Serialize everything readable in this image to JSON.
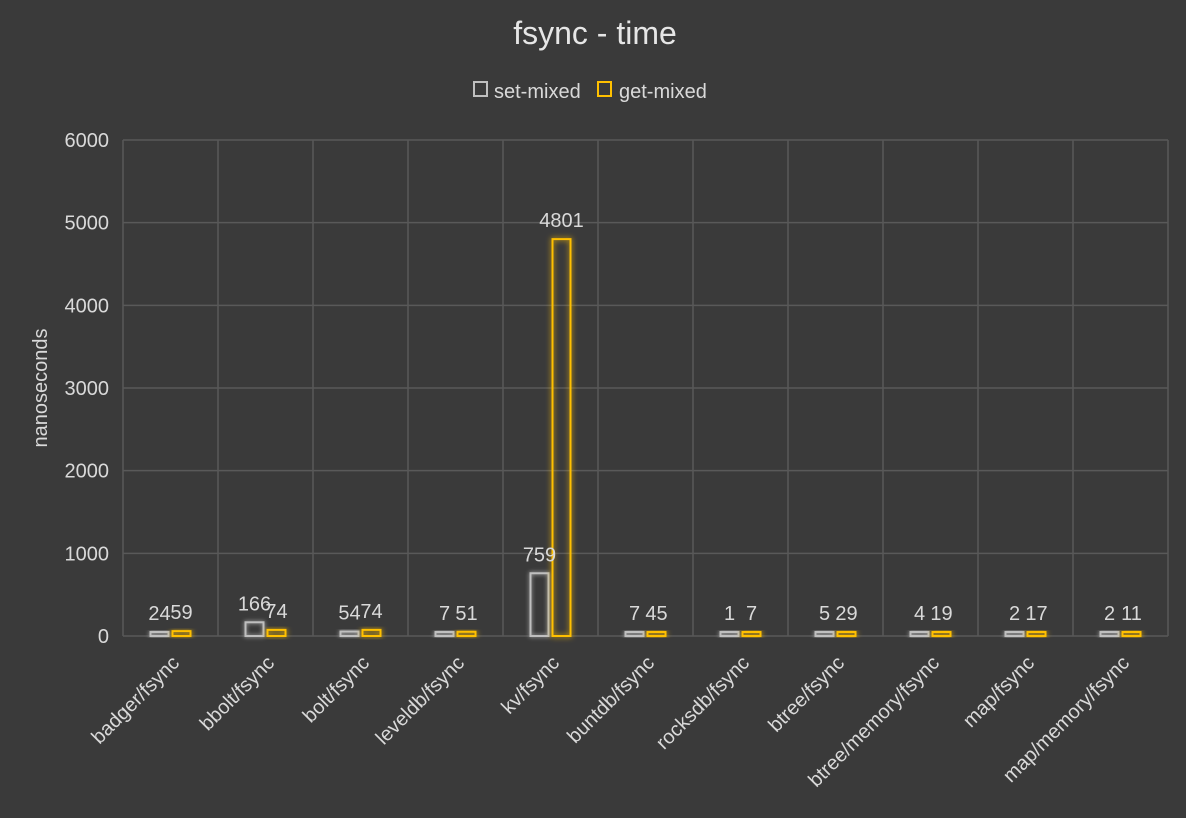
{
  "chart_data": {
    "type": "bar",
    "title": "fsync - time",
    "ylabel": "nanoseconds",
    "xlabel": "",
    "ylim": [
      0,
      6000
    ],
    "yticks": [
      0,
      1000,
      2000,
      3000,
      4000,
      5000,
      6000
    ],
    "grid": true,
    "legend_position": "top",
    "categories": [
      "badger/fsync",
      "bbolt/fsync",
      "bolt/fsync",
      "leveldb/fsync",
      "kv/fsync",
      "buntdb/fsync",
      "rocksdb/fsync",
      "btree/fsync",
      "btree/memory/fsync",
      "map/fsync",
      "map/memory/fsync"
    ],
    "series": [
      {
        "name": "set-mixed",
        "color": "#bfbfbf",
        "values": [
          24,
          166,
          54,
          7,
          759,
          7,
          1,
          5,
          4,
          2,
          2
        ]
      },
      {
        "name": "get-mixed",
        "color": "#ffc000",
        "values": [
          59,
          74,
          74,
          51,
          4801,
          45,
          7,
          29,
          19,
          17,
          11
        ]
      }
    ]
  },
  "colors": {
    "background": "#3a3a3a",
    "gridline": "#595959",
    "text": "#d9d9d9"
  }
}
